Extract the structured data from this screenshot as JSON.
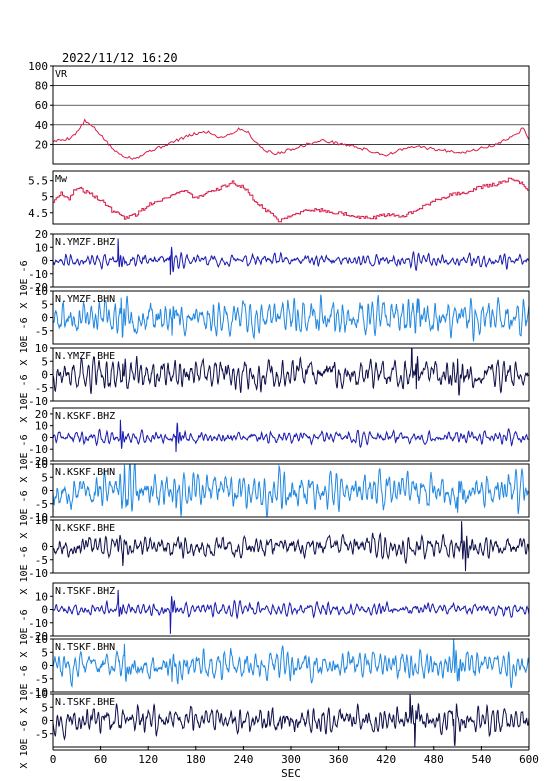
{
  "header": {
    "datetime": "2022/11/12  16:20"
  },
  "chart_data": {
    "type": "line",
    "title": "2022/11/12  16:20",
    "xlabel": "SEC",
    "xlim": [
      0,
      600
    ],
    "xticks": [
      0,
      60,
      120,
      180,
      240,
      300,
      360,
      420,
      480,
      540,
      600
    ],
    "panels": [
      {
        "name": "VR",
        "ylim": [
          0,
          100
        ],
        "yticks": [
          20,
          40,
          60,
          80,
          100
        ],
        "grid": true,
        "color": "#d81e4a",
        "knots": [
          [
            0,
            23
          ],
          [
            20,
            26
          ],
          [
            30,
            32
          ],
          [
            40,
            44
          ],
          [
            50,
            38
          ],
          [
            60,
            30
          ],
          [
            70,
            20
          ],
          [
            80,
            12
          ],
          [
            90,
            8
          ],
          [
            100,
            6
          ],
          [
            110,
            8
          ],
          [
            120,
            13
          ],
          [
            135,
            17
          ],
          [
            150,
            22
          ],
          [
            165,
            27
          ],
          [
            180,
            31
          ],
          [
            195,
            33
          ],
          [
            210,
            27
          ],
          [
            225,
            31
          ],
          [
            235,
            36
          ],
          [
            245,
            33
          ],
          [
            255,
            23
          ],
          [
            265,
            15
          ],
          [
            280,
            10
          ],
          [
            300,
            15
          ],
          [
            320,
            20
          ],
          [
            340,
            24
          ],
          [
            360,
            21
          ],
          [
            380,
            18
          ],
          [
            400,
            13
          ],
          [
            420,
            9
          ],
          [
            440,
            15
          ],
          [
            460,
            18
          ],
          [
            480,
            15
          ],
          [
            500,
            13
          ],
          [
            520,
            12
          ],
          [
            540,
            16
          ],
          [
            560,
            20
          ],
          [
            575,
            27
          ],
          [
            585,
            30
          ],
          [
            592,
            37
          ],
          [
            600,
            26
          ]
        ]
      },
      {
        "name": "Mw",
        "ylim": [
          4.15,
          5.8
        ],
        "yticks": [
          4.5,
          5.0,
          5.5
        ],
        "color": "#d81e4a",
        "knots": [
          [
            0,
            4.85
          ],
          [
            10,
            5.1
          ],
          [
            20,
            4.95
          ],
          [
            30,
            5.3
          ],
          [
            45,
            5.1
          ],
          [
            60,
            4.9
          ],
          [
            75,
            4.55
          ],
          [
            90,
            4.35
          ],
          [
            105,
            4.45
          ],
          [
            120,
            4.75
          ],
          [
            135,
            4.9
          ],
          [
            150,
            5.05
          ],
          [
            165,
            5.2
          ],
          [
            180,
            4.95
          ],
          [
            195,
            5.1
          ],
          [
            210,
            5.25
          ],
          [
            225,
            5.45
          ],
          [
            240,
            5.3
          ],
          [
            255,
            4.85
          ],
          [
            270,
            4.55
          ],
          [
            285,
            4.25
          ],
          [
            300,
            4.45
          ],
          [
            315,
            4.55
          ],
          [
            330,
            4.6
          ],
          [
            345,
            4.55
          ],
          [
            360,
            4.5
          ],
          [
            380,
            4.4
          ],
          [
            400,
            4.32
          ],
          [
            420,
            4.45
          ],
          [
            440,
            4.4
          ],
          [
            460,
            4.6
          ],
          [
            480,
            4.85
          ],
          [
            500,
            5.05
          ],
          [
            520,
            5.15
          ],
          [
            540,
            5.3
          ],
          [
            560,
            5.4
          ],
          [
            575,
            5.55
          ],
          [
            585,
            5.5
          ],
          [
            600,
            5.2
          ]
        ]
      },
      {
        "name": "N.YMZF.BHZ",
        "ylim": [
          -20,
          20
        ],
        "yticks": [
          -20,
          -10,
          0,
          10,
          20
        ],
        "unit": "X 10E -6",
        "color": "#1a1ab0",
        "noise": 2.0,
        "seed": 11,
        "events": [
          [
            82,
            14,
            3
          ],
          [
            148,
            -14,
            3
          ]
        ]
      },
      {
        "name": "N.YMZF.BHN",
        "ylim": [
          -10,
          10
        ],
        "yticks": [
          -5,
          0,
          5,
          10
        ],
        "unit": "X 10E -6",
        "color": "#2288e0",
        "noise": 3.0,
        "seed": 23,
        "events": [
          [
            86,
            6,
            4
          ],
          [
            150,
            -7,
            3
          ],
          [
            460,
            -6,
            3
          ]
        ]
      },
      {
        "name": "N.YMZF.BHE",
        "ylim": [
          -10,
          10
        ],
        "yticks": [
          -10,
          -5,
          0,
          5,
          10
        ],
        "unit": "X 10E -6",
        "color": "#10104a",
        "noise": 2.6,
        "seed": 37,
        "events": [
          [
            88,
            5,
            5
          ],
          [
            452,
            12,
            2
          ],
          [
            458,
            -9,
            3
          ],
          [
            510,
            5,
            4
          ]
        ]
      },
      {
        "name": "N.KSKF.BHZ",
        "ylim": [
          -20,
          25
        ],
        "yticks": [
          -20,
          -10,
          0,
          10,
          20
        ],
        "unit": "X 10E -6",
        "color": "#1a1ab0",
        "noise": 2.2,
        "seed": 41,
        "events": [
          [
            85,
            16,
            3
          ],
          [
            155,
            -14,
            4
          ]
        ]
      },
      {
        "name": "N.KSKF.BHN",
        "ylim": [
          -10,
          10
        ],
        "yticks": [
          -10,
          -5,
          0,
          5,
          10
        ],
        "unit": "X 10E -6",
        "color": "#2288e0",
        "noise": 3.2,
        "seed": 53,
        "events": [
          [
            90,
            6,
            5
          ],
          [
            155,
            -5,
            4
          ],
          [
            510,
            -6,
            5
          ]
        ]
      },
      {
        "name": "N.KSKF.BHE",
        "ylim": [
          -10,
          10
        ],
        "yticks": [
          -10,
          -5,
          0,
          10
        ],
        "unit": "X 10E -6",
        "color": "#10104a",
        "noise": 1.8,
        "seed": 67,
        "events": [
          [
            88,
            -4,
            3
          ],
          [
            515,
            8,
            3
          ],
          [
            520,
            -6,
            3
          ]
        ]
      },
      {
        "name": "N.TSKF.BHZ",
        "ylim": [
          -20,
          20
        ],
        "yticks": [
          -20,
          -10,
          0,
          10
        ],
        "unit": "X 10E -6",
        "color": "#1a1ab0",
        "noise": 2.0,
        "seed": 71,
        "events": [
          [
            82,
            10,
            3
          ],
          [
            148,
            -16,
            3
          ]
        ]
      },
      {
        "name": "N.TSKF.BHN",
        "ylim": [
          -10,
          10
        ],
        "yticks": [
          -10,
          -5,
          0,
          5,
          10
        ],
        "unit": "X 10E -6",
        "color": "#2288e0",
        "noise": 2.4,
        "seed": 83,
        "events": [
          [
            90,
            5,
            4
          ],
          [
            150,
            -5,
            3
          ],
          [
            505,
            8,
            4
          ],
          [
            512,
            -5,
            4
          ]
        ]
      },
      {
        "name": "N.TSKF.BHE",
        "ylim": [
          -10,
          10
        ],
        "yticks": [
          -5,
          0,
          5,
          10
        ],
        "unit": "X 10E -6",
        "color": "#10104a",
        "noise": 2.2,
        "seed": 97,
        "events": [
          [
            450,
            12,
            2
          ],
          [
            456,
            -10,
            3
          ],
          [
            505,
            5,
            4
          ]
        ]
      }
    ]
  }
}
